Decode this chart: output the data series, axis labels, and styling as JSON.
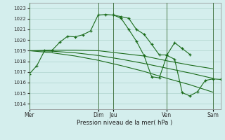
{
  "background_color": "#d4eeed",
  "grid_color": "#aed4cc",
  "line_color": "#1a6b1a",
  "xlabel": "Pression niveau de la mer( hPa )",
  "ylim": [
    1013.5,
    1023.5
  ],
  "yticks": [
    1014,
    1015,
    1016,
    1017,
    1018,
    1019,
    1020,
    1021,
    1022,
    1023
  ],
  "day_labels": [
    "Mer",
    "Dim",
    "Jeu",
    "Ven",
    "Sam"
  ],
  "day_positions": [
    0,
    9,
    11,
    18,
    24
  ],
  "xlim": [
    0,
    25
  ],
  "line1_x": [
    0,
    1,
    2,
    3,
    4,
    5,
    6,
    7,
    8,
    9,
    10,
    11,
    12,
    13,
    14,
    15,
    16,
    17,
    18,
    19,
    20,
    21
  ],
  "line1_y": [
    1016.8,
    1017.6,
    1019.0,
    1019.05,
    1019.8,
    1020.35,
    1020.3,
    1020.5,
    1020.85,
    1022.35,
    1022.4,
    1022.35,
    1022.2,
    1022.05,
    1021.0,
    1020.55,
    1019.6,
    1018.6,
    1018.6,
    1019.75,
    1019.2,
    1018.65
  ],
  "line2_x": [
    0,
    3,
    6,
    9,
    12,
    15,
    18,
    21,
    24
  ],
  "line2_y": [
    1019.0,
    1019.05,
    1019.05,
    1019.0,
    1018.75,
    1018.5,
    1018.05,
    1017.65,
    1017.3
  ],
  "line3_x": [
    0,
    3,
    6,
    9,
    12,
    15,
    18,
    21,
    24
  ],
  "line3_y": [
    1019.0,
    1018.95,
    1018.8,
    1018.55,
    1018.2,
    1017.8,
    1017.35,
    1016.9,
    1016.4
  ],
  "line4_x": [
    0,
    3,
    6,
    9,
    12,
    15,
    18,
    21,
    24
  ],
  "line4_y": [
    1019.0,
    1018.8,
    1018.5,
    1018.1,
    1017.6,
    1017.05,
    1016.4,
    1015.8,
    1015.1
  ],
  "line5_x": [
    11,
    12,
    13,
    14,
    15,
    16,
    17,
    18,
    19,
    20,
    21,
    22,
    23,
    24,
    25
  ],
  "line5_y": [
    1022.35,
    1022.05,
    1021.0,
    1019.9,
    1018.55,
    1016.55,
    1016.45,
    1018.55,
    1018.2,
    1015.05,
    1014.75,
    1015.15,
    1016.2,
    1016.35,
    1016.3
  ]
}
